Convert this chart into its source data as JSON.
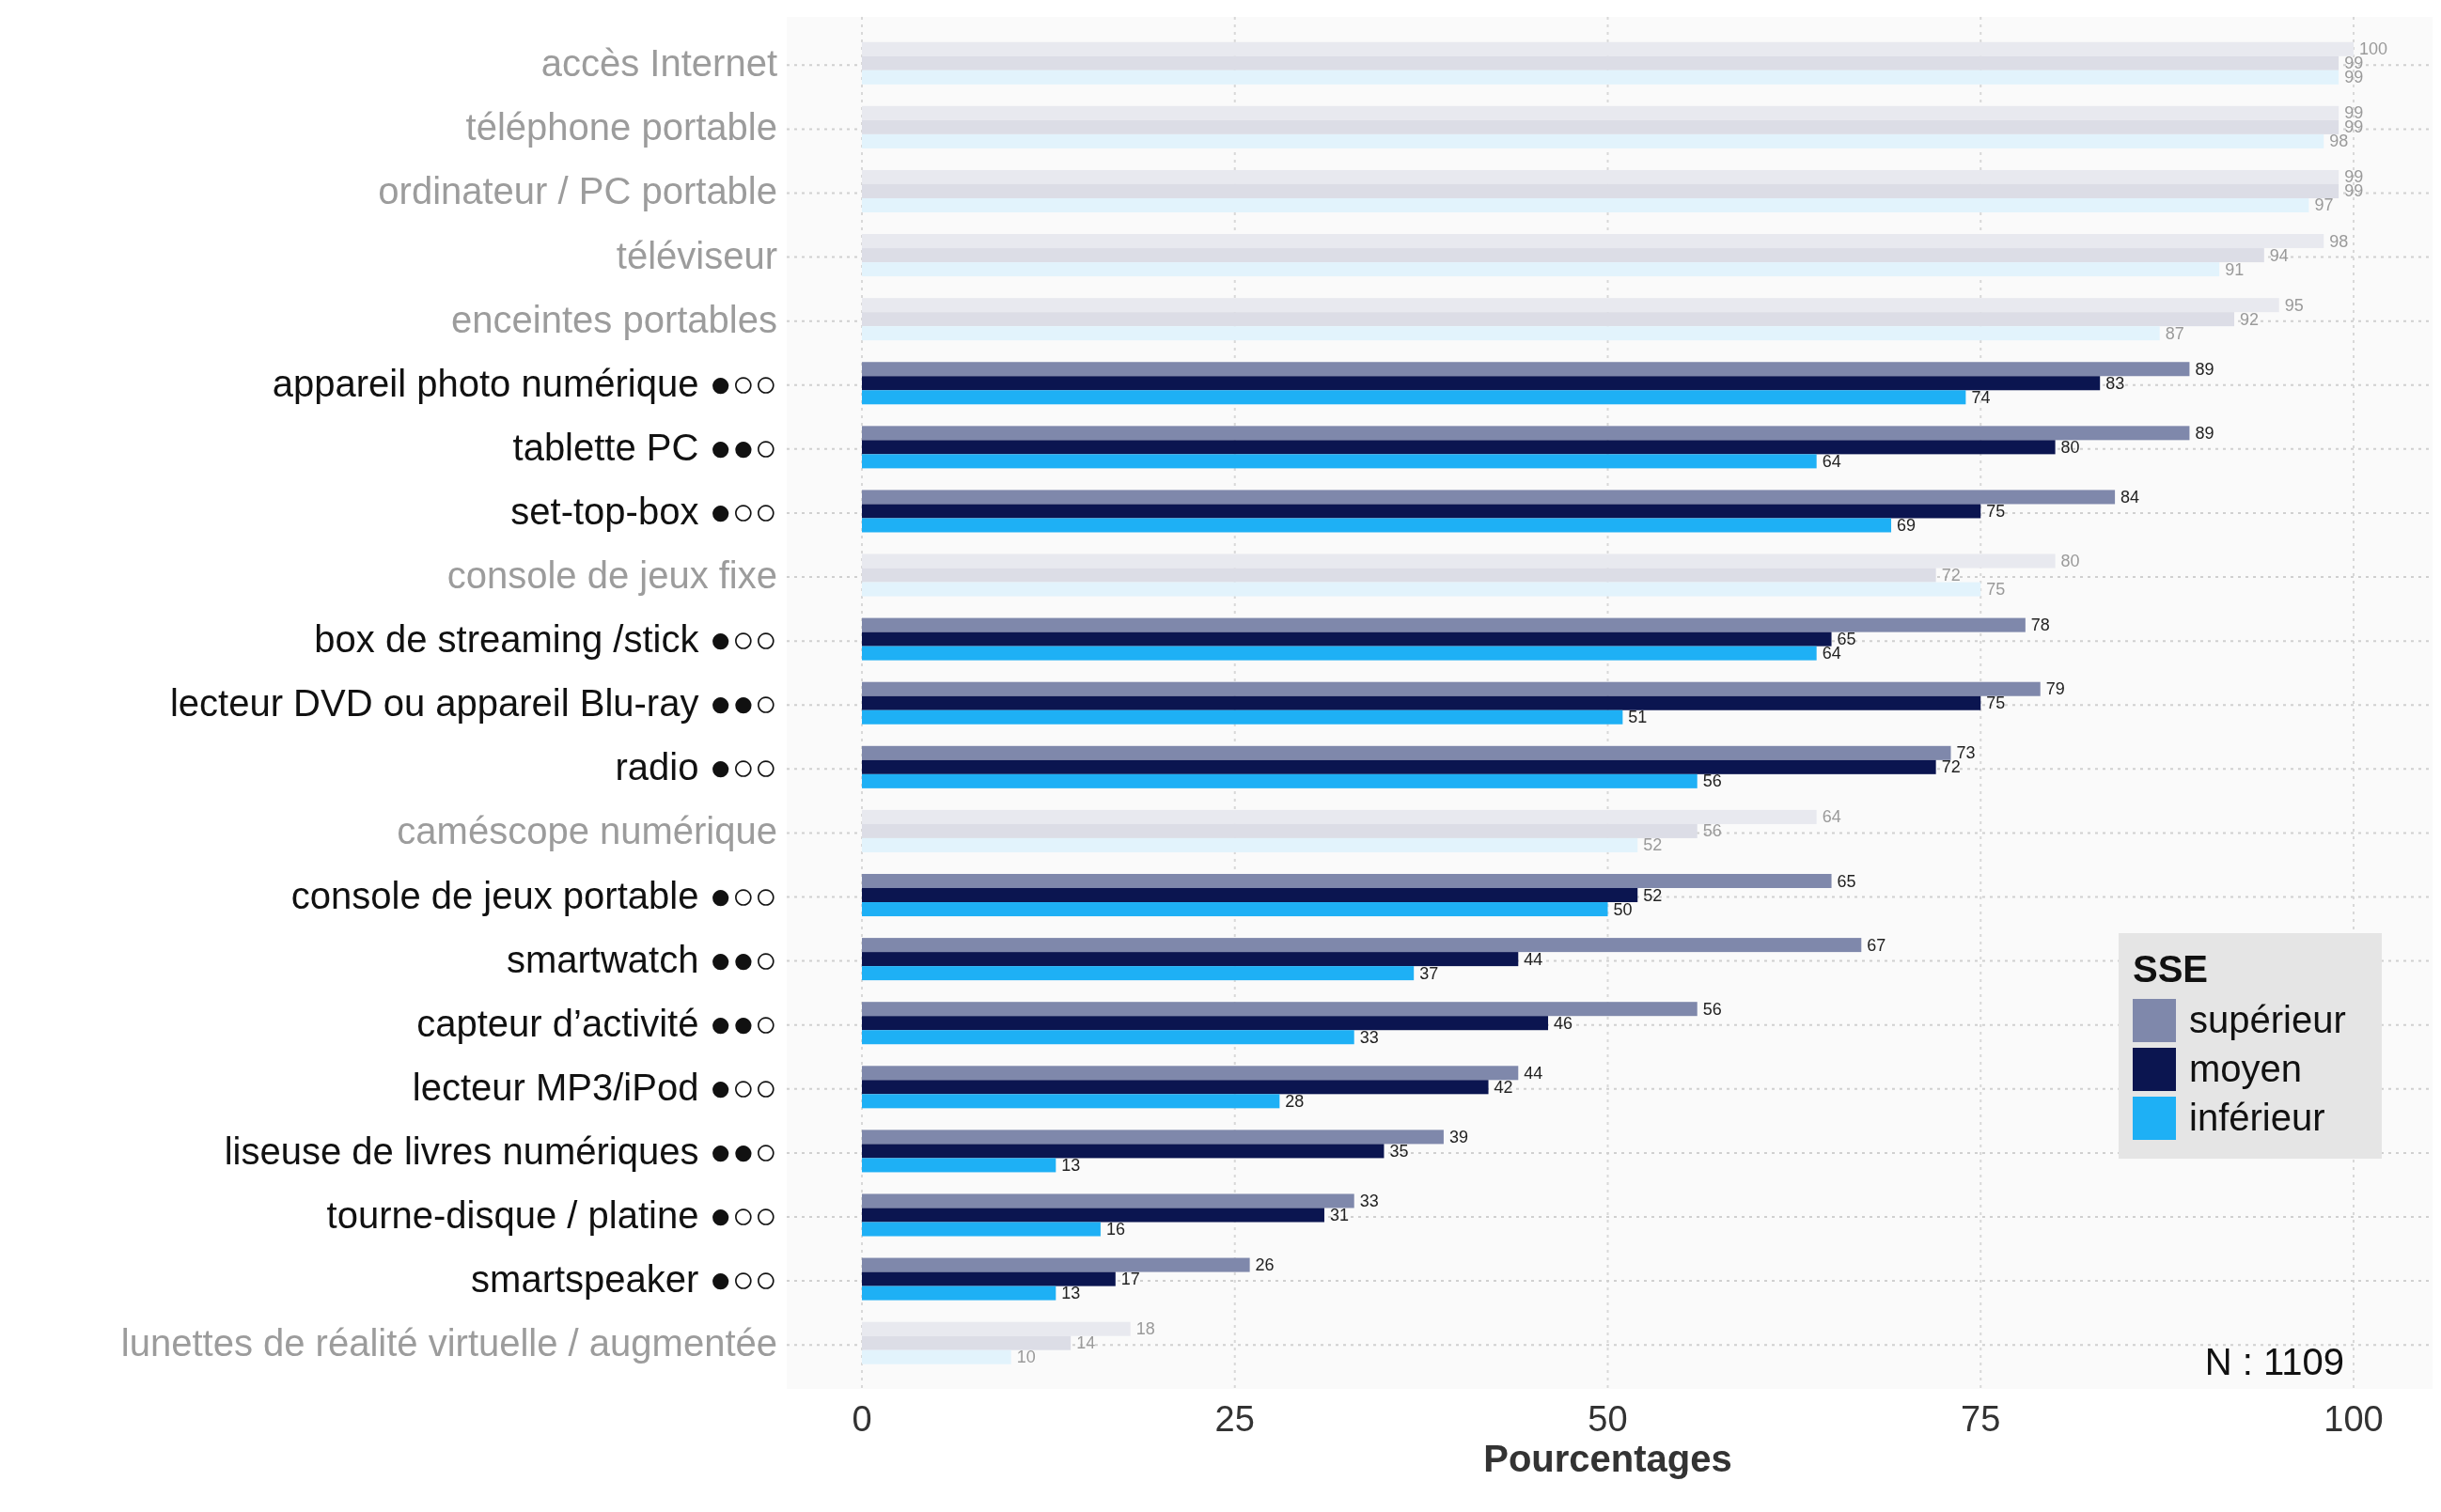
{
  "chart_data": {
    "type": "bar",
    "orientation": "horizontal",
    "xlabel": "Pourcentages",
    "legend_title": "SSE",
    "legend": "bottom right",
    "grid": true,
    "data_labels": true,
    "xlim": [
      0,
      100
    ],
    "xticks": [
      0,
      25,
      50,
      75,
      100
    ],
    "categories": [
      "accès Internet",
      "téléphone portable",
      "ordinateur / PC portable",
      "téléviseur",
      "enceintes portables",
      "appareil photo numérique ●○○",
      "tablette PC ●●○",
      "set-top-box ●○○",
      "console de jeux fixe",
      "box de streaming /stick ●○○",
      "lecteur DVD ou appareil Blu-ray ●●○",
      "radio ●○○",
      "caméscope numérique",
      "console de jeux portable ●○○",
      "smartwatch ●●○",
      "capteur d’activité ●●○",
      "lecteur MP3/iPod ●○○",
      "liseuse de livres numériques ●●○",
      "tourne-disque / platine ●○○",
      "smartspeaker ●○○",
      "lunettes de réalité virtuelle / augmentée"
    ],
    "series": [
      {
        "name": "supérieur",
        "color": "#7f88ab",
        "values": [
          100,
          99,
          99,
          98,
          95,
          89,
          89,
          84,
          80,
          78,
          79,
          73,
          64,
          65,
          67,
          56,
          44,
          39,
          33,
          26,
          18
        ],
        "colors": [
          "#e8e9ef",
          "#e8e9ef",
          "#e8e9ef",
          "#e8e9ef",
          "#e8e9ef",
          "#7f88ab",
          "#7f88ab",
          "#7f88ab",
          "#e8e9ef",
          "#7f88ab",
          "#7f88ab",
          "#7f88ab",
          "#e8e9ef",
          "#7f88ab",
          "#7f88ab",
          "#7f88ab",
          "#7f88ab",
          "#7f88ab",
          "#7f88ab",
          "#7f88ab",
          "#e8e9ef"
        ]
      },
      {
        "name": "moyen",
        "color": "#0b1550",
        "values": [
          99,
          99,
          99,
          94,
          92,
          83,
          80,
          75,
          72,
          65,
          75,
          72,
          56,
          52,
          44,
          46,
          42,
          35,
          31,
          17,
          14
        ],
        "colors": [
          "#dcdde6",
          "#dcdde6",
          "#dcdde6",
          "#dcdde6",
          "#dcdde6",
          "#0b1550",
          "#0b1550",
          "#0b1550",
          "#dcdde6",
          "#0b1550",
          "#0b1550",
          "#0b1550",
          "#dcdde6",
          "#0b1550",
          "#0b1550",
          "#0b1550",
          "#0b1550",
          "#0b1550",
          "#0b1550",
          "#0b1550",
          "#dcdde6"
        ]
      },
      {
        "name": "inférieur",
        "color": "#1eb0f5",
        "values": [
          99,
          98,
          97,
          91,
          87,
          74,
          64,
          69,
          75,
          64,
          51,
          56,
          52,
          50,
          37,
          33,
          28,
          13,
          16,
          13,
          10
        ],
        "colors": [
          "#e2f3fc",
          "#e2f3fc",
          "#e2f3fc",
          "#e2f3fc",
          "#e2f3fc",
          "#1eb0f5",
          "#1eb0f5",
          "#1eb0f5",
          "#e2f3fc",
          "#1eb0f5",
          "#1eb0f5",
          "#1eb0f5",
          "#e2f3fc",
          "#1eb0f5",
          "#1eb0f5",
          "#1eb0f5",
          "#1eb0f5",
          "#1eb0f5",
          "#1eb0f5",
          "#1eb0f5",
          "#e2f3fc"
        ]
      }
    ],
    "annotations": [
      "N : 1109"
    ]
  }
}
